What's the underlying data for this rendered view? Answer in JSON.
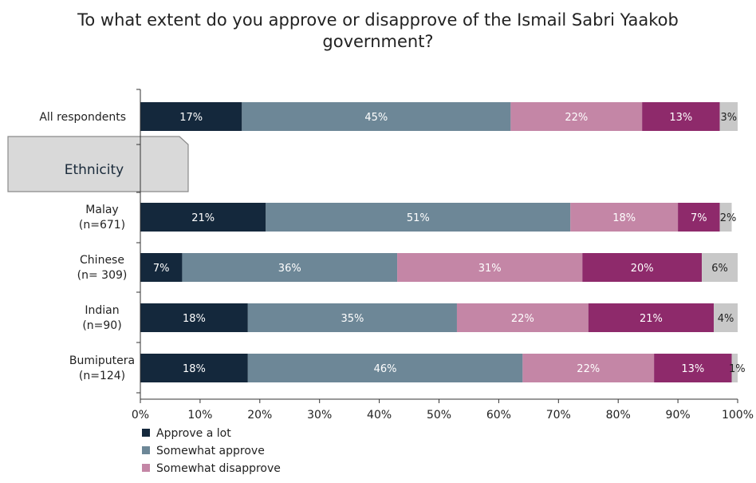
{
  "chart_data": {
    "type": "bar",
    "orientation": "horizontal",
    "stacked": true,
    "title": "To what extent do you approve or disapprove of the Ismail Sabri Yaakob\ngovernment?",
    "categories": [
      {
        "line1": "All respondents",
        "line2": ""
      },
      {
        "line1": "Malay",
        "line2": "(n=671)"
      },
      {
        "line1": "Chinese",
        "line2": "(n= 309)"
      },
      {
        "line1": "Indian",
        "line2": "(n=90)"
      },
      {
        "line1": "Bumiputera",
        "line2": "(n=124)"
      }
    ],
    "group_label": "Ethnicity",
    "series": [
      {
        "name": "Approve a lot",
        "color": "#14283c",
        "text_color": "#ffffff",
        "values": [
          17,
          21,
          7,
          18,
          18
        ],
        "labels": [
          "17%",
          "21%",
          "7%",
          "18%",
          "18%"
        ]
      },
      {
        "name": "Somewhat approve",
        "color": "#6d8797",
        "text_color": "#ffffff",
        "values": [
          45,
          51,
          36,
          35,
          46
        ],
        "labels": [
          "45%",
          "51%",
          "36%",
          "35%",
          "46%"
        ]
      },
      {
        "name": "Somewhat disapprove",
        "color": "#c486a6",
        "text_color": "#ffffff",
        "values": [
          22,
          18,
          31,
          22,
          22
        ],
        "labels": [
          "22%",
          "18%",
          "31%",
          "22%",
          "22%"
        ]
      },
      {
        "name": "",
        "color": "#8e2a6b",
        "text_color": "#ffffff",
        "values": [
          13,
          7,
          20,
          21,
          13
        ],
        "labels": [
          "13%",
          "7%",
          "20%",
          "21%",
          "13%"
        ]
      },
      {
        "name": "",
        "color": "#c8c8c8",
        "text_color": "#222222",
        "values": [
          3,
          2,
          6,
          4,
          1
        ],
        "labels": [
          "3%",
          "2%",
          "6%",
          "4%",
          "1%"
        ]
      }
    ],
    "x_ticks": [
      "0%",
      "10%",
      "20%",
      "30%",
      "40%",
      "50%",
      "60%",
      "70%",
      "80%",
      "90%",
      "100%"
    ],
    "xlim": [
      0,
      100
    ],
    "grid": false,
    "legend_position": "bottom-left"
  }
}
